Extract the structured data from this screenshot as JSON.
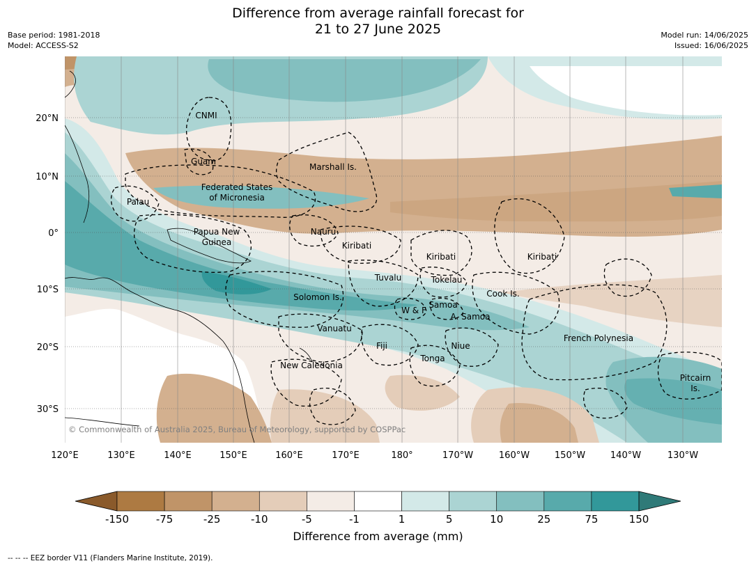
{
  "title": {
    "line1": "Difference from average rainfall forecast for",
    "line2": "21 to 27 June 2025"
  },
  "meta_left": {
    "base_period": "Base period: 1981-2018",
    "model": "Model: ACCESS-S2"
  },
  "meta_right": {
    "model_run": "Model run: 14/06/2025",
    "issued": "Issued: 16/06/2025"
  },
  "map": {
    "lat_labels": [
      "20°N",
      "10°N",
      "0°",
      "10°S",
      "20°S",
      "30°S"
    ],
    "lon_labels": [
      "120°E",
      "130°E",
      "140°E",
      "150°E",
      "160°E",
      "170°E",
      "180°",
      "170°W",
      "160°W",
      "150°W",
      "140°W",
      "130°W"
    ],
    "copyright": "© Commonwealth of Australia 2025, Bureau of Meteorology, supported by COSPPac",
    "regions": [
      {
        "id": "cnmi",
        "label": "CNMI"
      },
      {
        "id": "guam",
        "label": "Guam"
      },
      {
        "id": "marshall",
        "label": "Marshall Is."
      },
      {
        "id": "fsm1",
        "label": "Federated States"
      },
      {
        "id": "fsm2",
        "label": "of Micronesia"
      },
      {
        "id": "palau",
        "label": "Palau"
      },
      {
        "id": "png1",
        "label": "Papua New"
      },
      {
        "id": "png2",
        "label": "Guinea"
      },
      {
        "id": "nauru",
        "label": "Nauru"
      },
      {
        "id": "kiribati-w",
        "label": "Kiribati"
      },
      {
        "id": "kiribati-c",
        "label": "Kiribati"
      },
      {
        "id": "kiribati-e",
        "label": "Kiribati"
      },
      {
        "id": "tuvalu",
        "label": "Tuvalu"
      },
      {
        "id": "tokelau",
        "label": "Tokelau"
      },
      {
        "id": "cook",
        "label": "Cook Is."
      },
      {
        "id": "solomon",
        "label": "Solomon Is."
      },
      {
        "id": "wf",
        "label": "W & F"
      },
      {
        "id": "samoa",
        "label": "Samoa"
      },
      {
        "id": "asamoa",
        "label": "A. Samoa"
      },
      {
        "id": "vanuatu",
        "label": "Vanuatu"
      },
      {
        "id": "fiji",
        "label": "Fiji"
      },
      {
        "id": "niue",
        "label": "Niue"
      },
      {
        "id": "tonga",
        "label": "Tonga"
      },
      {
        "id": "frpoly",
        "label": "French Polynesia"
      },
      {
        "id": "newcal",
        "label": "New Caledonia"
      },
      {
        "id": "pitcairn1",
        "label": "Pitcairn"
      },
      {
        "id": "pitcairn2",
        "label": "Is."
      }
    ]
  },
  "colorbar": {
    "ticks": [
      "-150",
      "-75",
      "-25",
      "-10",
      "-5",
      "-1",
      "1",
      "5",
      "10",
      "25",
      "75",
      "150"
    ],
    "colors": [
      "#8a5a2b",
      "#ad7a42",
      "#c09468",
      "#d3b08f",
      "#e4cdb9",
      "#f4ece6",
      "#ffffff",
      "#d3e9e8",
      "#abd4d3",
      "#83bfbf",
      "#58aaab",
      "#32989a",
      "#2f7a78"
    ],
    "unit_label": "Difference from average (mm)"
  },
  "footnote": "--  --  -- EEZ border V11 (Flanders Marine Institute, 2019)."
}
